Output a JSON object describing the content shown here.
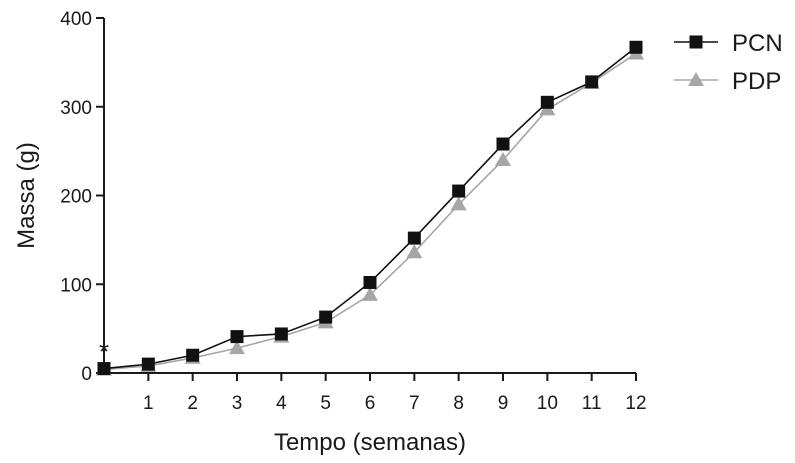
{
  "chart_data": {
    "type": "line",
    "title": "",
    "xlabel": "Tempo (semanas)",
    "ylabel": "Massa (g)",
    "xlim": [
      0,
      12
    ],
    "ylim": [
      0,
      400
    ],
    "x_ticks": [
      1,
      2,
      3,
      4,
      5,
      6,
      7,
      8,
      9,
      10,
      11,
      12
    ],
    "y_ticks": [
      0,
      100,
      200,
      300,
      400
    ],
    "grid": false,
    "legend_position": "top-right",
    "x": [
      0,
      1,
      2,
      3,
      4,
      5,
      6,
      7,
      8,
      9,
      10,
      11,
      12
    ],
    "series": [
      {
        "name": "PCN",
        "marker": "square",
        "color": "#111111",
        "values": [
          5,
          10,
          20,
          41,
          44,
          63,
          102,
          152,
          205,
          258,
          305,
          328,
          367
        ]
      },
      {
        "name": "PDP",
        "marker": "triangle",
        "color": "#a6a6a6",
        "values": [
          4,
          8,
          17,
          28,
          41,
          57,
          88,
          136,
          190,
          240,
          297,
          327,
          360
        ]
      }
    ],
    "annotations": [
      {
        "text": "*",
        "x": 0,
        "y": 5
      }
    ]
  }
}
